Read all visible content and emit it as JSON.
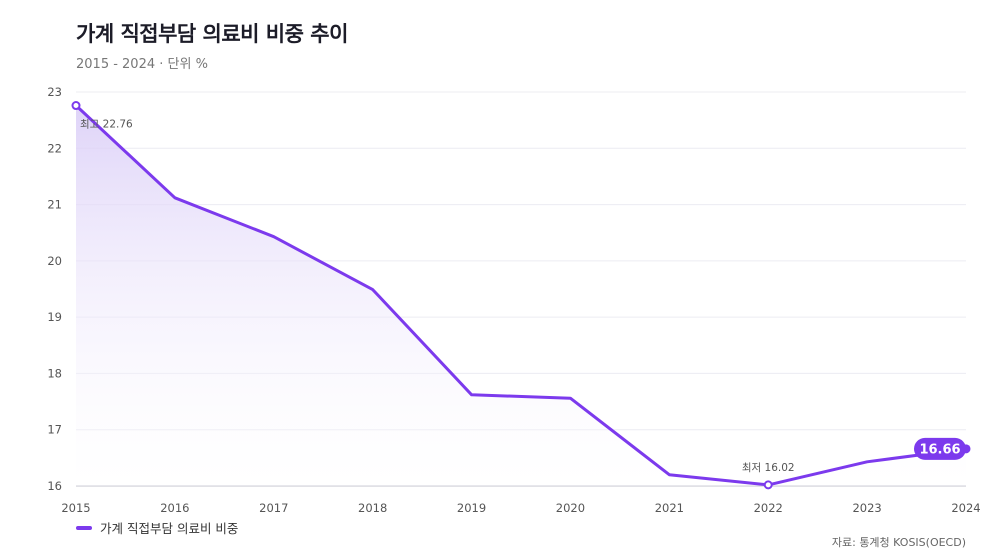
{
  "title": "가계 직접부담 의료비 비중 추이",
  "subtitle": "2015 - 2024 · 단위 %",
  "source": "자료: 통계청 KOSIS(OECD)",
  "legend_label": "가계 직접부담 의료비 비중",
  "colors": {
    "line": "#7c3aed",
    "area_top": "#d9ccf7",
    "grid": "#ececf2",
    "badge": "#7c3aed"
  },
  "chart_data": {
    "type": "area",
    "x": [
      2015,
      2016,
      2017,
      2018,
      2019,
      2020,
      2021,
      2022,
      2023,
      2024
    ],
    "series": [
      {
        "name": "가계 직접부담 의료비 비중",
        "values": [
          22.76,
          21.12,
          20.43,
          19.49,
          17.62,
          17.56,
          16.2,
          16.02,
          16.43,
          16.66
        ]
      }
    ],
    "ylim": [
      16,
      23
    ],
    "yticks": [
      16,
      17,
      18,
      19,
      20,
      21,
      22,
      23
    ],
    "grid": true,
    "legend": "bottom-left",
    "annotations": {
      "max_label": "최고 22.76",
      "min_label": "최저 16.02",
      "last_value_label": "16.66"
    }
  }
}
